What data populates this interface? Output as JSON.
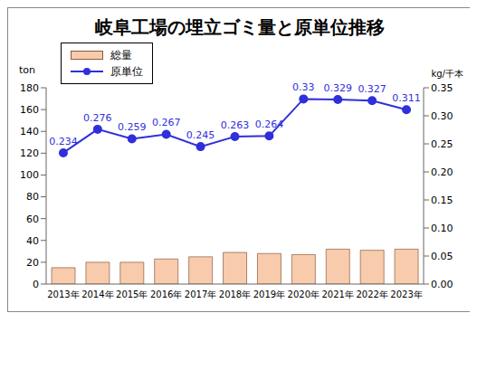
{
  "chart_data": {
    "type": "bar",
    "title": "岐阜工場の埋立ゴミ量と原単位推移",
    "ylabel": "ton",
    "y2label": "kg/千本",
    "categories": [
      "2013年",
      "2014年",
      "2015年",
      "2016年",
      "2017年",
      "2018年",
      "2019年",
      "2020年",
      "2021年",
      "2022年",
      "2023年"
    ],
    "series": [
      {
        "name": "総量",
        "type": "bar",
        "color": "#f8cbad",
        "values": [
          15,
          20,
          20,
          23,
          25,
          29,
          28,
          27,
          32,
          31,
          32
        ]
      },
      {
        "name": "原単位",
        "type": "line",
        "axis": "y2",
        "color": "#2f2fdc",
        "marker": "circle",
        "data_labels": true,
        "values": [
          0.234,
          0.276,
          0.259,
          0.267,
          0.245,
          0.263,
          0.264,
          0.33,
          0.329,
          0.327,
          0.311
        ]
      }
    ],
    "ylim": [
      0,
      180
    ],
    "yticks": [
      0,
      20,
      40,
      60,
      80,
      100,
      120,
      140,
      160,
      180
    ],
    "y2lim": [
      0,
      0.35
    ],
    "y2ticks": [
      {
        "value": 0,
        "label": "0.00"
      },
      0.05,
      {
        "value": 0.1,
        "label": "0.10"
      },
      0.15,
      {
        "value": 0.2,
        "label": "0.20"
      },
      0.25,
      {
        "value": 0.3,
        "label": "0.30"
      },
      0.35
    ],
    "grid": false,
    "legend": "upper left"
  }
}
